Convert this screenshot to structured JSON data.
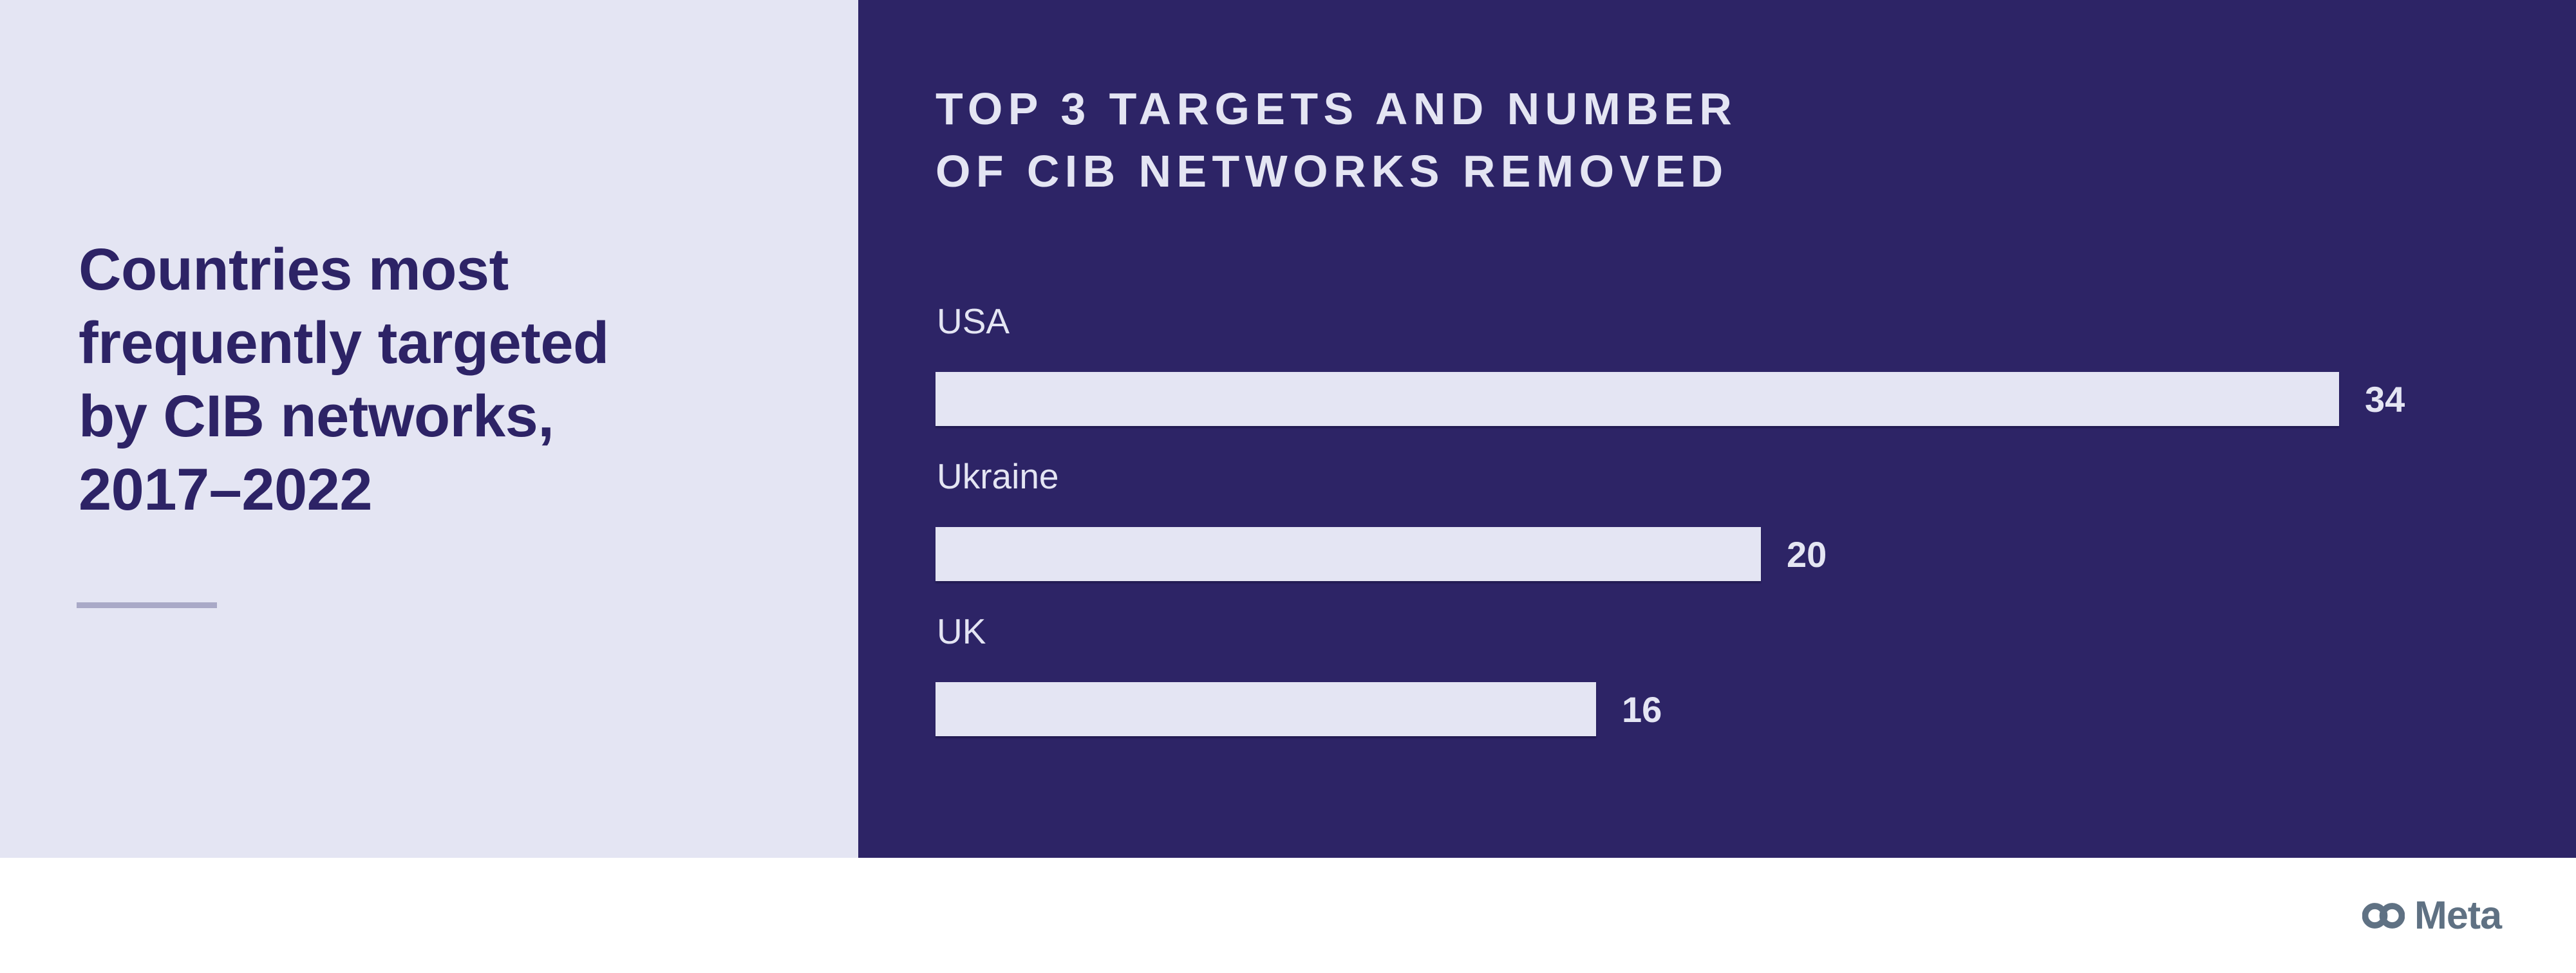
{
  "left_panel": {
    "headline_lines": [
      "Countries most",
      "frequently targeted",
      "by CIB networks,",
      "2017–2022"
    ]
  },
  "right_panel": {
    "title_lines": [
      "TOP 3 TARGETS AND NUMBER",
      "OF CIB NETWORKS REMOVED"
    ]
  },
  "chart_data": {
    "type": "bar",
    "orientation": "horizontal",
    "title": "TOP 3 TARGETS AND NUMBER OF CIB NETWORKS REMOVED",
    "categories": [
      "USA",
      "Ukraine",
      "UK"
    ],
    "values": [
      34,
      20,
      16
    ],
    "value_labels": [
      "34",
      "20",
      "16"
    ],
    "xlim": [
      0,
      34
    ],
    "gridlines": false,
    "legend": false,
    "value_label_position": "right-of-bar",
    "bar_color": "#E4E5F3",
    "background_color": "#2D2466"
  },
  "footer": {
    "brand_name": "Meta"
  },
  "colors": {
    "left_panel_bg": "#E4E5F3",
    "right_panel_bg": "#2D2466",
    "headline_text": "#2D2366",
    "divider": "#A9A9C7",
    "chart_text": "#E4E5F3",
    "footer_bg": "#FFFFFF",
    "meta_logo": "#5F7183"
  }
}
